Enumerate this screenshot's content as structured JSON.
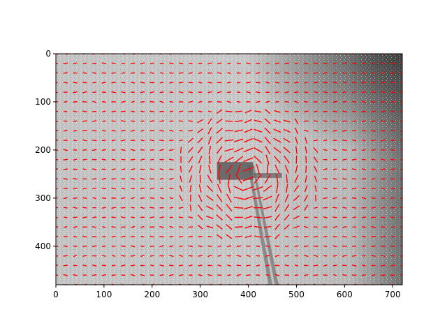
{
  "chart_data": {
    "type": "quiver",
    "description_background": "grayscale image",
    "xlim": [
      0,
      720
    ],
    "ylim": [
      480,
      0
    ],
    "y_inverted": true,
    "xticks": [
      0,
      100,
      200,
      300,
      400,
      500,
      600,
      700
    ],
    "yticks": [
      0,
      100,
      200,
      300,
      400
    ],
    "xtick_labels": [
      "0",
      "100",
      "200",
      "300",
      "400",
      "500",
      "600",
      "700"
    ],
    "ytick_labels": [
      "0",
      "100",
      "200",
      "300",
      "400"
    ],
    "arrow_color": "#ff0000",
    "grid_spacing": 20,
    "grid_x_start": 0,
    "grid_y_start": 0,
    "disturbance_center": [
      400,
      250
    ],
    "title": "",
    "xlabel": "",
    "ylabel": ""
  }
}
